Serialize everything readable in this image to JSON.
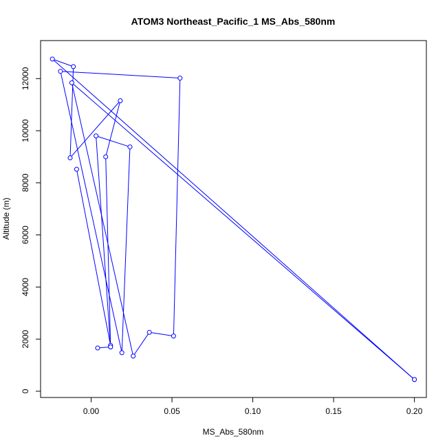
{
  "chart_data": {
    "type": "line",
    "title": "ATOM3 Northeast_Pacific_1 MS_Abs_580nm",
    "xlabel": "MS_Abs_580nm",
    "ylabel": "Altitude (m)",
    "xlim": [
      -0.0313,
      0.2074
    ],
    "ylim": [
      -240,
      13460
    ],
    "x_ticks": [
      0.0,
      0.05,
      0.1,
      0.15,
      0.2
    ],
    "x_tick_labels": [
      "0.00",
      "0.05",
      "0.10",
      "0.15",
      "0.20"
    ],
    "y_ticks": [
      0,
      2000,
      4000,
      6000,
      8000,
      10000,
      12000
    ],
    "y_tick_labels": [
      "0",
      "2000",
      "4000",
      "6000",
      "8000",
      "10000",
      "12000"
    ],
    "grid": false,
    "color": "#0000ff",
    "points": [
      {
        "x": 0.2,
        "y": 450
      },
      {
        "x": -0.024,
        "y": 12750
      },
      {
        "x": -0.011,
        "y": 12460
      },
      {
        "x": -0.013,
        "y": 8960
      },
      {
        "x": 0.018,
        "y": 11150
      },
      {
        "x": 0.009,
        "y": 9000
      },
      {
        "x": 0.012,
        "y": 1700
      },
      {
        "x": 0.003,
        "y": 9800
      },
      {
        "x": 0.024,
        "y": 9380
      },
      {
        "x": 0.019,
        "y": 1480
      },
      {
        "x": -0.019,
        "y": 12280
      },
      {
        "x": 0.055,
        "y": 12020
      },
      {
        "x": 0.051,
        "y": 2120
      },
      {
        "x": 0.036,
        "y": 2260
      },
      {
        "x": 0.026,
        "y": 1350
      },
      {
        "x": -0.012,
        "y": 11840
      },
      {
        "x": 0.2,
        "y": 450
      }
    ],
    "extra_points": [
      {
        "x": -0.009,
        "y": 8520
      },
      {
        "x": 0.012,
        "y": 1760
      },
      {
        "x": 0.012,
        "y": 1700
      },
      {
        "x": 0.004,
        "y": 1660
      }
    ]
  }
}
